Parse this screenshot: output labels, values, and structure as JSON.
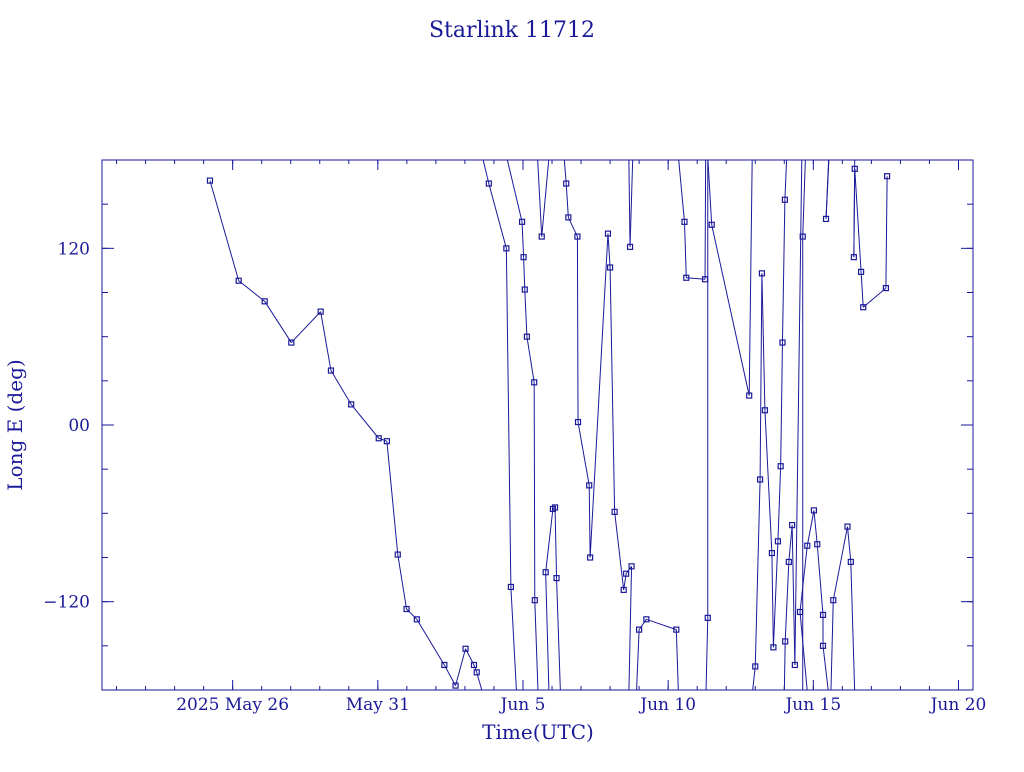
{
  "chart_data": {
    "type": "line",
    "title": "Starlink 11712",
    "xlabel": "Time(UTC)",
    "ylabel": "Long E (deg)",
    "x_unit": "date (UTC, 2025)",
    "xlim": [
      "2025-05-21T12:00",
      "2025-06-20T12:00"
    ],
    "ylim": [
      -180,
      180
    ],
    "x_ticks": [
      {
        "at": "2025-05-26",
        "label": "2025 May 26"
      },
      {
        "at": "2025-05-31",
        "label": "May 31"
      },
      {
        "at": "2025-06-05",
        "label": "Jun  5"
      },
      {
        "at": "2025-06-10",
        "label": "Jun 10"
      },
      {
        "at": "2025-06-15",
        "label": "Jun 15"
      },
      {
        "at": "2025-06-20",
        "label": "Jun 20"
      }
    ],
    "y_ticks": [
      {
        "value": 120,
        "label": "120"
      },
      {
        "value": 0,
        "label": "00"
      },
      {
        "value": -120,
        "label": "−120"
      }
    ],
    "grid": false,
    "marker": "square",
    "color": "#1a1a99",
    "series": [
      {
        "wrap_longitude": true,
        "points": [
          {
            "x": "2025-05-25T05:15",
            "y": 166
          },
          {
            "x": "2025-05-26T05:00",
            "y": 98
          },
          {
            "x": "2025-05-27T02:30",
            "y": 84
          },
          {
            "x": "2025-05-28T00:30",
            "y": 56
          },
          {
            "x": "2025-05-29T00:45",
            "y": 77
          },
          {
            "x": "2025-05-29T09:15",
            "y": 37
          },
          {
            "x": "2025-05-30T02:00",
            "y": 14
          },
          {
            "x": "2025-05-31T00:45",
            "y": -9
          },
          {
            "x": "2025-05-31T07:30",
            "y": -11
          },
          {
            "x": "2025-05-31T16:30",
            "y": -88
          },
          {
            "x": "2025-05-31T23:45",
            "y": -125
          },
          {
            "x": "2025-06-01T08:15",
            "y": -132
          },
          {
            "x": "2025-06-02T07:00",
            "y": -163
          },
          {
            "x": "2025-06-02T16:15",
            "y": -177
          },
          {
            "x": "2025-06-03T00:30",
            "y": -152
          },
          {
            "x": "2025-06-03T07:30",
            "y": -163
          },
          {
            "x": "2025-06-03T09:45",
            "y": -168
          },
          {
            "x": "2025-06-03T15:00",
            "y": -183
          },
          {
            "x": "2025-06-03T14:30",
            "y": 182
          },
          {
            "x": "2025-06-03T19:45",
            "y": 164
          },
          {
            "x": "2025-06-04T10:15",
            "y": 120
          },
          {
            "x": "2025-06-04T14:00",
            "y": -110
          },
          {
            "x": "2025-06-04T18:45",
            "y": -183
          },
          {
            "x": "2025-06-04T10:30",
            "y": 182
          },
          {
            "x": "2025-06-04T23:15",
            "y": 138
          },
          {
            "x": "2025-06-05T00:30",
            "y": 114
          },
          {
            "x": "2025-06-05T01:30",
            "y": 92
          },
          {
            "x": "2025-06-05T03:15",
            "y": 60
          },
          {
            "x": "2025-06-05T09:15",
            "y": 29
          },
          {
            "x": "2025-06-05T09:45",
            "y": -119
          },
          {
            "x": "2025-06-05T12:30",
            "y": -183
          },
          {
            "x": "2025-06-05T12:00",
            "y": 182
          },
          {
            "x": "2025-06-05T15:30",
            "y": 128
          },
          {
            "x": "2025-06-05T21:30",
            "y": 182
          },
          {
            "x": "2025-06-05T21:30",
            "y": -183
          },
          {
            "x": "2025-06-05T18:45",
            "y": -100
          },
          {
            "x": "2025-06-06T00:45",
            "y": -57
          },
          {
            "x": "2025-06-06T02:30",
            "y": -56
          },
          {
            "x": "2025-06-06T03:45",
            "y": -104
          },
          {
            "x": "2025-06-06T07:00",
            "y": -183
          },
          {
            "x": "2025-06-06T10:00",
            "y": 182
          },
          {
            "x": "2025-06-06T11:45",
            "y": 164
          },
          {
            "x": "2025-06-06T13:30",
            "y": 141
          },
          {
            "x": "2025-06-06T21:00",
            "y": 128
          },
          {
            "x": "2025-06-06T21:30",
            "y": 2
          },
          {
            "x": "2025-06-07T06:45",
            "y": -41
          },
          {
            "x": "2025-06-07T07:30",
            "y": -90
          },
          {
            "x": "2025-06-07T22:15",
            "y": 130
          },
          {
            "x": "2025-06-08T00:00",
            "y": 107
          },
          {
            "x": "2025-06-08T03:45",
            "y": -59
          },
          {
            "x": "2025-06-08T11:15",
            "y": -112
          },
          {
            "x": "2025-06-08T13:15",
            "y": -101
          },
          {
            "x": "2025-06-08T17:45",
            "y": -96
          },
          {
            "x": "2025-06-08T15:30",
            "y": -183
          },
          {
            "x": "2025-06-08T15:30",
            "y": 182
          },
          {
            "x": "2025-06-08T16:30",
            "y": 121
          },
          {
            "x": "2025-06-08T18:45",
            "y": 182
          },
          {
            "x": "2025-06-08T21:45",
            "y": -183
          },
          {
            "x": "2025-06-09T00:00",
            "y": -139
          },
          {
            "x": "2025-06-09T06:00",
            "y": -132
          },
          {
            "x": "2025-06-10T06:45",
            "y": -139
          },
          {
            "x": "2025-06-10T08:30",
            "y": -183
          },
          {
            "x": "2025-06-10T08:30",
            "y": 182
          },
          {
            "x": "2025-06-10T13:30",
            "y": 138
          },
          {
            "x": "2025-06-10T15:00",
            "y": 100
          },
          {
            "x": "2025-06-11T06:30",
            "y": 99
          },
          {
            "x": "2025-06-11T07:00",
            "y": 182
          },
          {
            "x": "2025-06-11T07:15",
            "y": -183
          },
          {
            "x": "2025-06-11T08:45",
            "y": -131
          },
          {
            "x": "2025-06-11T08:45",
            "y": 182
          },
          {
            "x": "2025-06-11T12:00",
            "y": 136
          },
          {
            "x": "2025-06-12T19:00",
            "y": 20
          },
          {
            "x": "2025-06-12T21:30",
            "y": 182
          },
          {
            "x": "2025-06-12T21:30",
            "y": -183
          },
          {
            "x": "2025-06-13T00:00",
            "y": -164
          },
          {
            "x": "2025-06-13T04:00",
            "y": -37
          },
          {
            "x": "2025-06-13T05:30",
            "y": 103
          },
          {
            "x": "2025-06-13T08:00",
            "y": 10
          },
          {
            "x": "2025-06-13T13:45",
            "y": -87
          },
          {
            "x": "2025-06-13T15:00",
            "y": -151
          },
          {
            "x": "2025-06-13T18:45",
            "y": -79
          },
          {
            "x": "2025-06-13T21:00",
            "y": -28
          },
          {
            "x": "2025-06-13T22:30",
            "y": 56
          },
          {
            "x": "2025-06-14T00:30",
            "y": 153
          },
          {
            "x": "2025-06-14T02:00",
            "y": 182
          },
          {
            "x": "2025-06-14T00:00",
            "y": -183
          },
          {
            "x": "2025-06-14T00:45",
            "y": -147
          },
          {
            "x": "2025-06-14T03:45",
            "y": -93
          },
          {
            "x": "2025-06-14T06:30",
            "y": -68
          },
          {
            "x": "2025-06-14T08:45",
            "y": -163
          },
          {
            "x": "2025-06-14T14:30",
            "y": 182
          },
          {
            "x": "2025-06-14T15:15",
            "y": -183
          },
          {
            "x": "2025-06-14T15:15",
            "y": 128
          },
          {
            "x": "2025-06-14T17:30",
            "y": 182
          },
          {
            "x": "2025-06-14T19:15",
            "y": -183
          },
          {
            "x": "2025-06-14T13:00",
            "y": -127
          },
          {
            "x": "2025-06-14T19:00",
            "y": -82
          },
          {
            "x": "2025-06-15T00:30",
            "y": -58
          },
          {
            "x": "2025-06-15T03:15",
            "y": -81
          },
          {
            "x": "2025-06-15T08:00",
            "y": -129
          },
          {
            "x": "2025-06-15T08:00",
            "y": -150
          },
          {
            "x": "2025-06-15T12:45",
            "y": -183
          },
          {
            "x": "2025-06-15T12:45",
            "y": 182
          },
          {
            "x": "2025-06-15T10:30",
            "y": 140
          },
          {
            "x": "2025-06-15T13:00",
            "y": 182
          },
          {
            "x": "2025-06-15T14:30",
            "y": -183
          },
          {
            "x": "2025-06-15T16:30",
            "y": -119
          },
          {
            "x": "2025-06-16T04:15",
            "y": -69
          },
          {
            "x": "2025-06-16T07:00",
            "y": -93
          },
          {
            "x": "2025-06-16T10:15",
            "y": -183
          },
          {
            "x": "2025-06-16T10:15",
            "y": 182
          },
          {
            "x": "2025-06-16T09:30",
            "y": 114
          },
          {
            "x": "2025-06-16T10:15",
            "y": 174
          },
          {
            "x": "2025-06-16T15:30",
            "y": 104
          },
          {
            "x": "2025-06-16T17:15",
            "y": 80
          },
          {
            "x": "2025-06-17T12:00",
            "y": 93
          },
          {
            "x": "2025-06-17T13:00",
            "y": 169
          }
        ]
      }
    ]
  }
}
